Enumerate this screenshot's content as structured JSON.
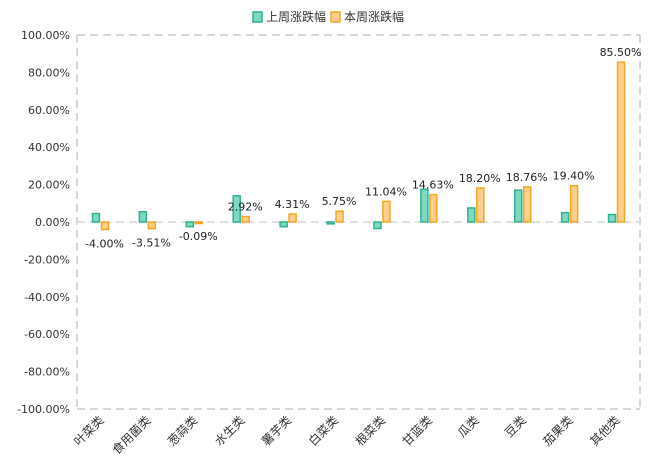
{
  "chart_data": {
    "type": "bar",
    "categories": [
      "叶菜类",
      "食用菌类",
      "葱蒜类",
      "水生类",
      "薯芋类",
      "白菜类",
      "根菜类",
      "甘蓝类",
      "瓜类",
      "豆类",
      "茄果类",
      "其他类"
    ],
    "series": [
      {
        "name": "上周涨跌幅",
        "values": [
          4.5,
          5.5,
          -2.5,
          14.0,
          -2.5,
          -1.0,
          -3.5,
          17.5,
          7.5,
          17.0,
          5.0,
          4.0
        ],
        "color": "#7dd9c4",
        "stroke": "#2fb18f"
      },
      {
        "name": "本周涨跌幅",
        "values": [
          -4.0,
          -3.51,
          -0.09,
          2.92,
          4.31,
          5.75,
          11.04,
          14.63,
          18.2,
          18.76,
          19.4,
          85.5
        ],
        "labels": [
          "-4.00%",
          "-3.51%",
          "-0.09%",
          "2.92%",
          "4.31%",
          "5.75%",
          "11.04%",
          "14.63%",
          "18.20%",
          "18.76%",
          "19.40%",
          "85.50%"
        ],
        "color": "#ffcf8f",
        "stroke": "#f5a623"
      }
    ],
    "y_ticks": [
      "100.00%",
      "80.00%",
      "60.00%",
      "40.00%",
      "20.00%",
      "0.00%",
      "-20.00%",
      "-40.00%",
      "-60.00%",
      "-80.00%",
      "-100.00%"
    ],
    "ylim": [
      -100,
      100
    ],
    "legend_position": "top-center",
    "grid": false
  }
}
